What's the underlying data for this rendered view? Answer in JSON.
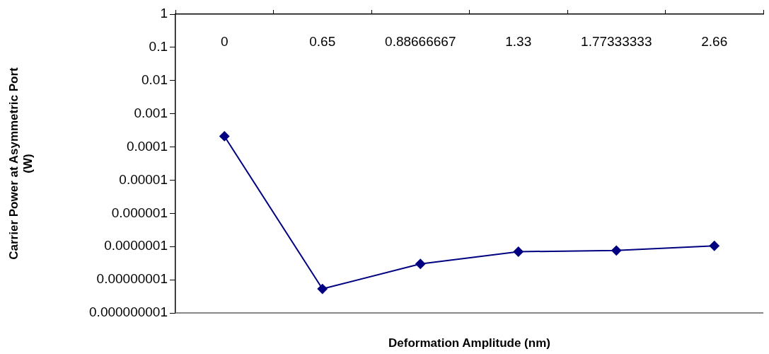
{
  "chart_data": {
    "type": "line",
    "xlabel": "Deformation Amplitude (nm)",
    "ylabel": "Carrier Power at Asymmetric Port\n(W)",
    "categories": [
      "0",
      "0.65",
      "0.88666667",
      "1.33",
      "1.77333333",
      "2.66"
    ],
    "series": [
      {
        "color": "#000080",
        "values": [
          0.00021,
          5.3e-09,
          3e-08,
          7e-08,
          7.6e-08,
          1.05e-07
        ]
      }
    ],
    "log": true,
    "ylim": [
      1e-09,
      1
    ],
    "yticks": [
      {
        "value": 1e-09,
        "label": "0.000000001"
      },
      {
        "value": 1e-08,
        "label": "0.00000001"
      },
      {
        "value": 1e-07,
        "label": "0.0000001"
      },
      {
        "value": 1e-06,
        "label": "0.000001"
      },
      {
        "value": 1e-05,
        "label": "0.00001"
      },
      {
        "value": 0.0001,
        "label": "0.0001"
      },
      {
        "value": 0.001,
        "label": "0.001"
      },
      {
        "value": 0.01,
        "label": "0.01"
      },
      {
        "value": 0.1,
        "label": "0.1"
      },
      {
        "value": 1,
        "label": "1"
      }
    ],
    "grid": false,
    "legend": false,
    "marker": "diamond",
    "line_style": "solid"
  }
}
